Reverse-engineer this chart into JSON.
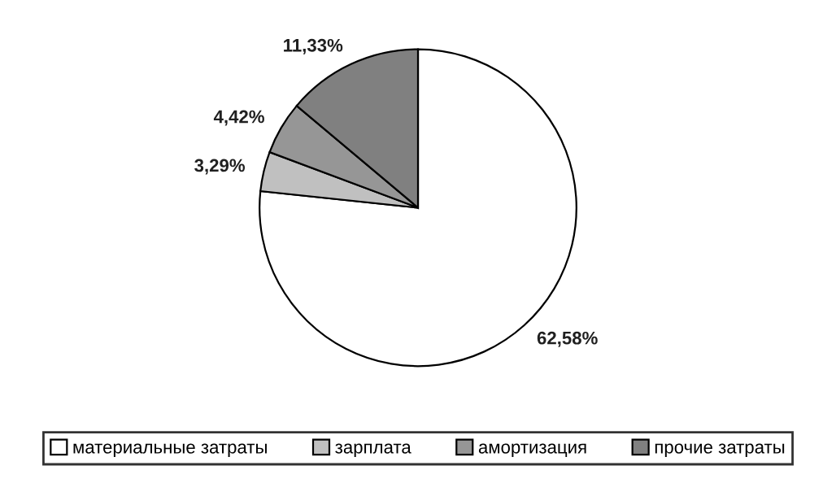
{
  "chart_data": {
    "type": "pie",
    "categories": [
      "материальные затраты",
      "зарплата",
      "амортизация",
      "прочие затраты"
    ],
    "values": [
      62.58,
      3.29,
      4.42,
      11.33
    ],
    "value_labels": [
      "62,58%",
      "3,29%",
      "4,42%",
      "11,33%"
    ],
    "colors": [
      "#ffffff",
      "#c0c0c0",
      "#969696",
      "#808080"
    ],
    "legend": "bottom"
  }
}
